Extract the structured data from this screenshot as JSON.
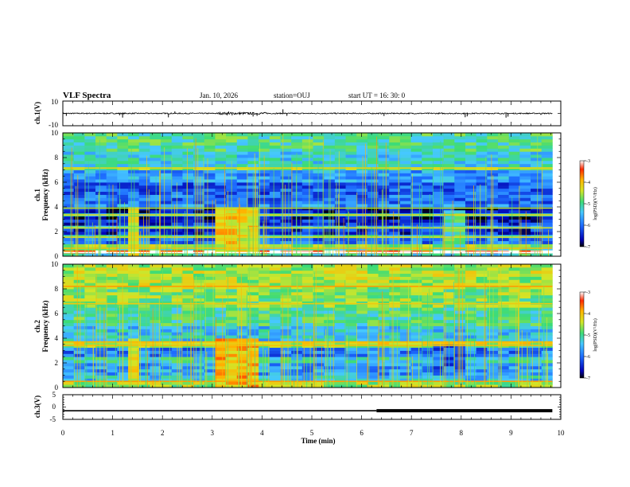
{
  "header": {
    "title": "VLF Spectra",
    "date": "Jan. 10, 2026",
    "station": "station=OUJ",
    "start_ut": "start  UT =   16: 30: 0"
  },
  "colors": {
    "cmap": [
      "#000000",
      "#0000b4",
      "#1e6eff",
      "#46c8ff",
      "#3cdc78",
      "#d2e628",
      "#ffb400",
      "#ff2800",
      "#ffffff"
    ]
  },
  "chart_data": [
    {
      "type": "line",
      "id": "ch1-waveform",
      "ylabel": "ch.1(V)",
      "ylim": [
        -10,
        10
      ],
      "yticks": [
        10,
        -10
      ],
      "xlim": [
        0,
        10
      ],
      "baseline": 0,
      "spikes": [
        {
          "t": 0.07,
          "v": -2.0
        },
        {
          "t": 1.14,
          "v": -1.5
        },
        {
          "t": 1.2,
          "v": -3.4
        },
        {
          "t": 2.12,
          "v": -3.2
        },
        {
          "t": 2.25,
          "v": 1.6
        },
        {
          "t": 3.3,
          "v": -1.5
        },
        {
          "t": 3.33,
          "v": 1.5
        },
        {
          "t": 3.4,
          "v": -1.6
        },
        {
          "t": 3.82,
          "v": -2.5
        },
        {
          "t": 3.9,
          "v": -2.0
        },
        {
          "t": 4.42,
          "v": 3.3
        },
        {
          "t": 4.5,
          "v": -2.0
        },
        {
          "t": 6.45,
          "v": -2.1
        },
        {
          "t": 8.08,
          "v": -3.1
        },
        {
          "t": 8.12,
          "v": -2.4
        },
        {
          "t": 8.9,
          "v": -3.4
        },
        {
          "t": 8.94,
          "v": -2.6
        },
        {
          "t": 9.6,
          "v": -1.2
        }
      ]
    },
    {
      "type": "heatmap",
      "id": "ch1-spectrogram",
      "ylabel_top": "ch.1",
      "ylabel": "Frequency (kHz)",
      "ylim": [
        0,
        10
      ],
      "yticks": [
        0,
        2,
        4,
        6,
        8,
        10
      ],
      "xlim": [
        0,
        10
      ],
      "colorbar": {
        "label": "log(PSD)(V²/Hz)",
        "range": [
          -7,
          -3
        ],
        "ticks": [
          -3,
          -4,
          -5,
          -6,
          -7
        ]
      },
      "bands": [
        {
          "f0": 0,
          "f1": 0.15,
          "v": -5.2
        },
        {
          "f0": 0.15,
          "f1": 0.45,
          "v": -3.3
        },
        {
          "f0": 0.45,
          "f1": 0.8,
          "v": -5.0
        },
        {
          "f0": 0.8,
          "f1": 1.1,
          "v": -4.6
        },
        {
          "f0": 1.1,
          "f1": 1.4,
          "v": -6.0
        },
        {
          "f0": 1.4,
          "f1": 1.8,
          "v": -5.2
        },
        {
          "f0": 1.8,
          "f1": 2.2,
          "v": -6.4
        },
        {
          "f0": 2.2,
          "f1": 2.6,
          "v": -5.5
        },
        {
          "f0": 2.6,
          "f1": 2.9,
          "v": -6.4
        },
        {
          "f0": 2.9,
          "f1": 3.2,
          "v": -6.7
        },
        {
          "f0": 3.2,
          "f1": 3.6,
          "v": -5.3
        },
        {
          "f0": 3.6,
          "f1": 3.9,
          "v": -6.6
        },
        {
          "f0": 3.9,
          "f1": 4.2,
          "v": -5.8
        },
        {
          "f0": 4.2,
          "f1": 5.0,
          "v": -6.0
        },
        {
          "f0": 5.0,
          "f1": 6.0,
          "v": -6.1
        },
        {
          "f0": 6.0,
          "f1": 7.0,
          "v": -5.7
        },
        {
          "f0": 7.0,
          "f1": 7.3,
          "v": -4.7
        },
        {
          "f0": 7.3,
          "f1": 8.5,
          "v": -5.3
        },
        {
          "f0": 8.5,
          "f1": 10.0,
          "v": -5.0
        }
      ],
      "lines": [
        {
          "f": 0.3,
          "v": -3.0
        },
        {
          "f": 0.65,
          "v": -4.0
        },
        {
          "f": 1.55,
          "v": -4.3
        },
        {
          "f": 2.3,
          "v": -4.4
        },
        {
          "f": 3.35,
          "v": -4.2
        },
        {
          "f": 3.9,
          "v": -4.5
        },
        {
          "f": 7.15,
          "v": -4.2
        }
      ],
      "events": [
        {
          "t0": 1.3,
          "t1": 1.42,
          "f0": 0,
          "f1": 4,
          "v": -4.4
        },
        {
          "t0": 3.13,
          "t1": 4.02,
          "f0": 0.2,
          "f1": 4,
          "v": -4.2
        },
        {
          "t0": 7.55,
          "t1": 8.0,
          "f0": 0.5,
          "f1": 3.8,
          "v": -5.0
        }
      ]
    },
    {
      "type": "heatmap",
      "id": "ch2-spectrogram",
      "ylabel_top": "ch.2",
      "ylabel": "Frequency (kHz)",
      "ylim": [
        0,
        10
      ],
      "yticks": [
        0,
        2,
        4,
        6,
        8,
        10
      ],
      "xlim": [
        0,
        10
      ],
      "colorbar": {
        "label": "log(PSD)(V²/Hz)",
        "range": [
          -7,
          -3
        ],
        "ticks": [
          -3,
          -4,
          -5,
          -6,
          -7
        ]
      },
      "bands": [
        {
          "f0": 0,
          "f1": 0.4,
          "v": -4.6
        },
        {
          "f0": 0.4,
          "f1": 1.0,
          "v": -5.4
        },
        {
          "f0": 1.0,
          "f1": 2.0,
          "v": -5.7
        },
        {
          "f0": 2.0,
          "f1": 2.5,
          "v": -5.2
        },
        {
          "f0": 2.5,
          "f1": 3.2,
          "v": -5.9
        },
        {
          "f0": 3.2,
          "f1": 3.6,
          "v": -4.8
        },
        {
          "f0": 3.6,
          "f1": 3.8,
          "v": -4.3
        },
        {
          "f0": 3.8,
          "f1": 5.0,
          "v": -5.4
        },
        {
          "f0": 5.0,
          "f1": 6.5,
          "v": -5.0
        },
        {
          "f0": 6.5,
          "f1": 8.0,
          "v": -4.7
        },
        {
          "f0": 8.0,
          "f1": 10.0,
          "v": -4.5
        }
      ],
      "lines": [
        {
          "f": 0.5,
          "v": -3.8
        },
        {
          "f": 3.4,
          "v": -4.0
        },
        {
          "f": 3.7,
          "v": -3.9
        },
        {
          "f": 6.8,
          "v": -4.1
        },
        {
          "f": 8.2,
          "v": -3.8
        }
      ],
      "events": [
        {
          "t0": 1.3,
          "t1": 1.42,
          "f0": 0,
          "f1": 4,
          "v": -4.3
        },
        {
          "t0": 3.13,
          "t1": 4.02,
          "f0": 0,
          "f1": 4,
          "v": -4.0
        },
        {
          "t0": 7.5,
          "t1": 8.1,
          "f0": 1,
          "f1": 3.6,
          "v": -6.1
        }
      ]
    },
    {
      "type": "line",
      "id": "ch3-waveform",
      "ylabel": "ch.3(V)",
      "ylim": [
        -5,
        5
      ],
      "yticks": [
        5,
        0,
        -5
      ],
      "xlim": [
        0,
        10
      ],
      "xlabel": "Time (min)",
      "xticks": [
        0,
        1,
        2,
        3,
        4,
        5,
        6,
        7,
        8,
        9,
        10
      ],
      "segments": [
        {
          "t0": 0,
          "t1": 6.3,
          "v": -1.5,
          "weight": "thin"
        },
        {
          "t0": 6.3,
          "t1": 9.83,
          "v": -1.5,
          "weight": "thick"
        }
      ]
    }
  ]
}
